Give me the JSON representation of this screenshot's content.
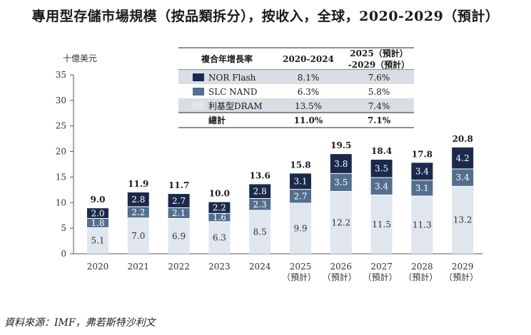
{
  "title": "專用型存儲市場規模（按品類拆分），按收入，全球，2020-2029（預計）",
  "source": "資料來源：IMF，弗若斯特沙利文",
  "colors": {
    "nor": "#1b2a4c",
    "slc": "#536f8f",
    "dram": "#dfe6ee",
    "axis": "#555555"
  },
  "table": {
    "headers": [
      "複合年增長率",
      "2020-2024",
      "2025（預計）",
      "-2029（預計）"
    ],
    "rows": [
      {
        "label": "NOR Flash",
        "a": "8.1%",
        "b": "7.6%"
      },
      {
        "label": "SLC NAND",
        "a": "6.3%",
        "b": "5.8%"
      },
      {
        "label": "利基型DRAM",
        "a": "13.5%",
        "b": "7.4%"
      }
    ],
    "total": {
      "label": "總計",
      "a": "11.0%",
      "b": "7.1%"
    }
  },
  "chart_data": {
    "type": "bar",
    "stacked": true,
    "ylabel": "十億美元",
    "ylim": [
      0,
      35
    ],
    "yticks": [
      "0",
      "5",
      "10",
      "15",
      "20",
      "25",
      "30",
      "35"
    ],
    "categories": [
      "2020",
      "2021",
      "2022",
      "2023",
      "2024",
      "2025",
      "2026",
      "2027",
      "2028",
      "2029"
    ],
    "category_sublabels": [
      "",
      "",
      "",
      "",
      "",
      "（預計）",
      "（預計）",
      "（預計）",
      "（預計）",
      "（預計）"
    ],
    "series": [
      {
        "name": "利基型DRAM",
        "values": [
          5.1,
          7.0,
          6.9,
          6.3,
          8.5,
          9.9,
          12.2,
          11.5,
          11.3,
          13.2
        ]
      },
      {
        "name": "SLC NAND",
        "values": [
          1.8,
          2.2,
          2.1,
          1.6,
          2.3,
          2.7,
          3.5,
          3.4,
          3.1,
          3.4
        ]
      },
      {
        "name": "NOR Flash",
        "values": [
          2.0,
          2.8,
          2.7,
          2.2,
          2.8,
          3.1,
          3.8,
          3.5,
          3.4,
          4.2
        ]
      }
    ],
    "value_labels": {
      "dram": [
        "5.1",
        "7.0",
        "6.9",
        "6.3",
        "8.5",
        "9.9",
        "12.2",
        "11.5",
        "11.3",
        "13.2"
      ],
      "slc": [
        "1.8",
        "2.2",
        "2.1",
        "1.6",
        "2.3",
        "2.7",
        "3.5",
        "3.4",
        "3.1",
        "3.4"
      ],
      "nor": [
        "2.0",
        "2.8",
        "2.7",
        "2.2",
        "2.8",
        "3.1",
        "3.8",
        "3.5",
        "3.4",
        "4.2"
      ]
    },
    "totals": [
      "9.0",
      "11.9",
      "11.7",
      "10.0",
      "13.6",
      "15.8",
      "19.5",
      "18.4",
      "17.8",
      "20.8"
    ]
  }
}
